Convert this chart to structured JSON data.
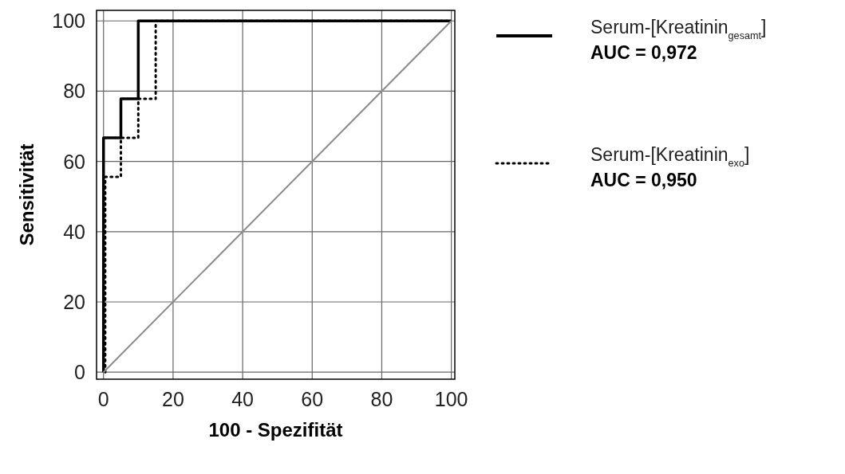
{
  "chart_data": {
    "type": "line",
    "xlabel": "100 - Spezifität",
    "ylabel": "Sensitivität",
    "xlim": [
      -2,
      101
    ],
    "ylim": [
      -2,
      103
    ],
    "xticks": [
      0,
      20,
      40,
      60,
      80,
      100
    ],
    "yticks": [
      0,
      20,
      40,
      60,
      80,
      100
    ],
    "grid": true,
    "legend": "right",
    "series": [
      {
        "name": "Serum-[Kreatinin$_{gesamt}$]",
        "color": "#000000",
        "line_style": "solid",
        "x": [
          0,
          0,
          5,
          5,
          10,
          10,
          100
        ],
        "values": [
          0,
          66.7,
          66.7,
          77.8,
          77.8,
          100,
          100
        ]
      },
      {
        "name": "Serum-[Kreatinin$_{exo}$]",
        "color": "#000000",
        "line_style": "dotted",
        "x": [
          0.5,
          0.5,
          5,
          5,
          10,
          10,
          15,
          15,
          100
        ],
        "values": [
          0,
          55.6,
          55.6,
          66.7,
          66.7,
          77.8,
          77.8,
          100,
          100
        ]
      },
      {
        "color": "#8c8c8c",
        "line_style": "solid",
        "x": [
          0,
          100
        ],
        "values": [
          0,
          100
        ]
      }
    ],
    "annotations": [
      "AUC = 0,972",
      "AUC = 0,950"
    ]
  }
}
